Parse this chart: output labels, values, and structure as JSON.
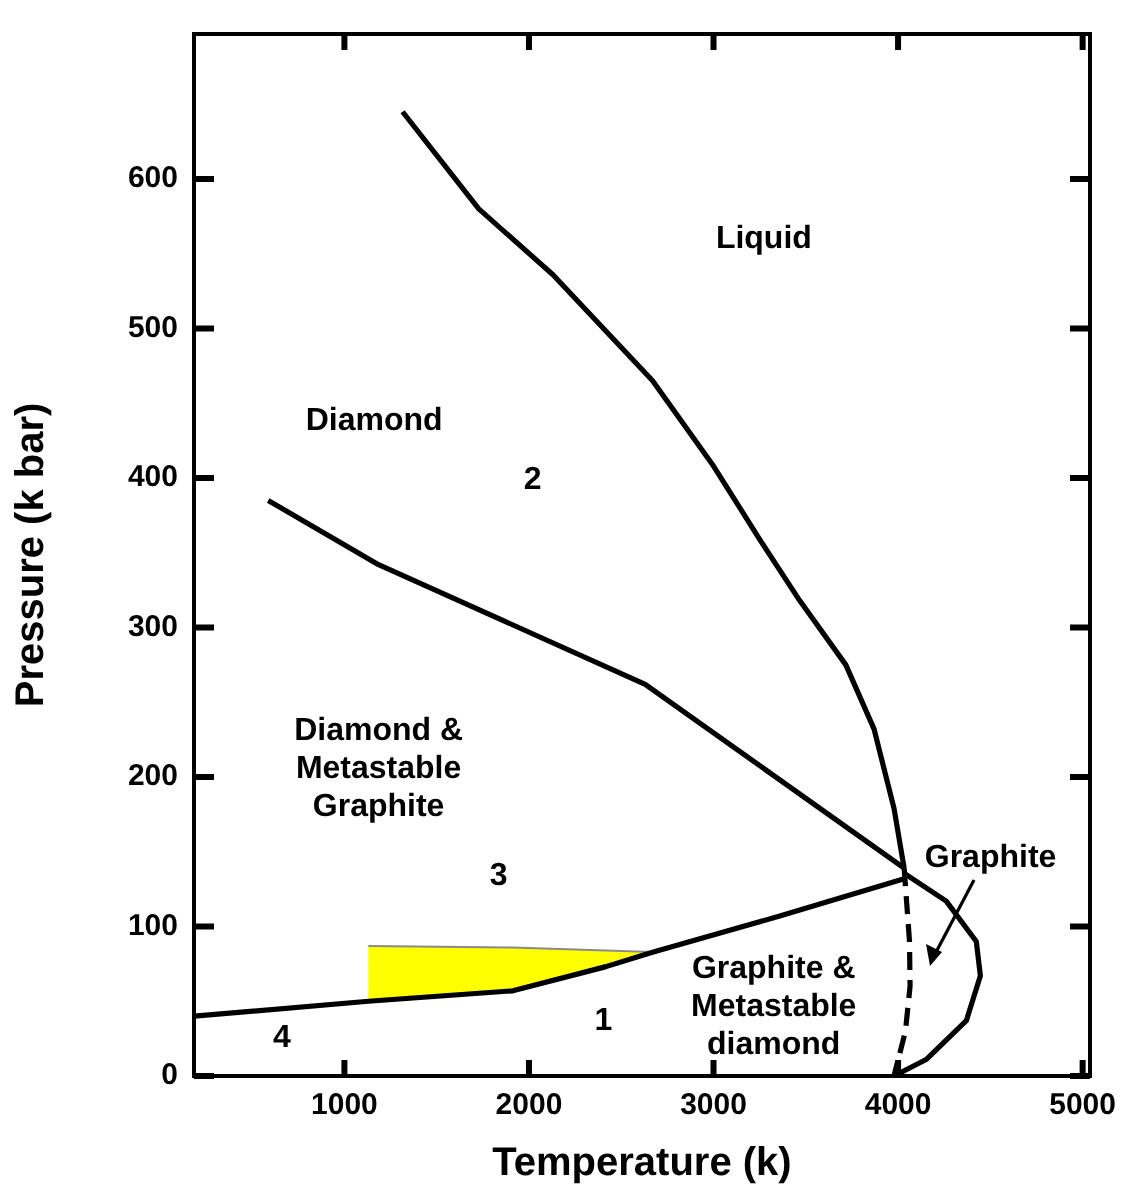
{
  "chart_data": {
    "type": "line",
    "xlabel": "Temperature (k)",
    "ylabel": "Pressure (k bar)",
    "xlim": [
      185,
      5040
    ],
    "ylim": [
      0,
      697
    ],
    "xticks": [
      1000,
      2000,
      3000,
      4000,
      5000
    ],
    "yticks": [
      0,
      100,
      200,
      300,
      400,
      500,
      600
    ],
    "grid": false,
    "legend": false,
    "series": [
      {
        "color": "#000000",
        "x": [
          1315,
          1728,
          2130,
          2670,
          3000,
          3250,
          3467,
          3717,
          3870,
          3978,
          4033
        ],
        "values": [
          645,
          580,
          536,
          465,
          408,
          359,
          318,
          275,
          232,
          179,
          139
        ]
      },
      {
        "color": "#000000",
        "x": [
          587,
          1185,
          2630,
          4033
        ],
        "values": [
          385,
          342,
          262,
          139
        ]
      },
      {
        "color": "#000000",
        "x": [
          185,
          1130,
          1913,
          2413,
          2674,
          3359,
          4033
        ],
        "values": [
          40,
          50,
          57,
          73,
          83,
          107,
          132
        ]
      },
      {
        "color": "#000000",
        "line_style": "dashed",
        "x": [
          4033,
          4062,
          4065,
          4040,
          3978
        ],
        "values": [
          139,
          90,
          60,
          30,
          0
        ]
      },
      {
        "color": "#000000",
        "x": [
          4040,
          4261,
          4424,
          4446,
          4370,
          4152,
          3978
        ],
        "values": [
          135,
          117,
          90,
          67,
          37,
          11,
          0
        ]
      },
      {
        "type": "area",
        "color": "#ffff00",
        "x": [
          1130,
          1913,
          2674,
          1913,
          1130
        ],
        "values": [
          87,
          86,
          83,
          57,
          50
        ]
      }
    ],
    "annotations": [
      "Liquid",
      "Diamond",
      "2",
      "Diamond &\nMetastable\nGraphite",
      "3",
      "Graphite",
      "Graphite &\nMetastable\ndiamond",
      "1",
      "4"
    ]
  }
}
